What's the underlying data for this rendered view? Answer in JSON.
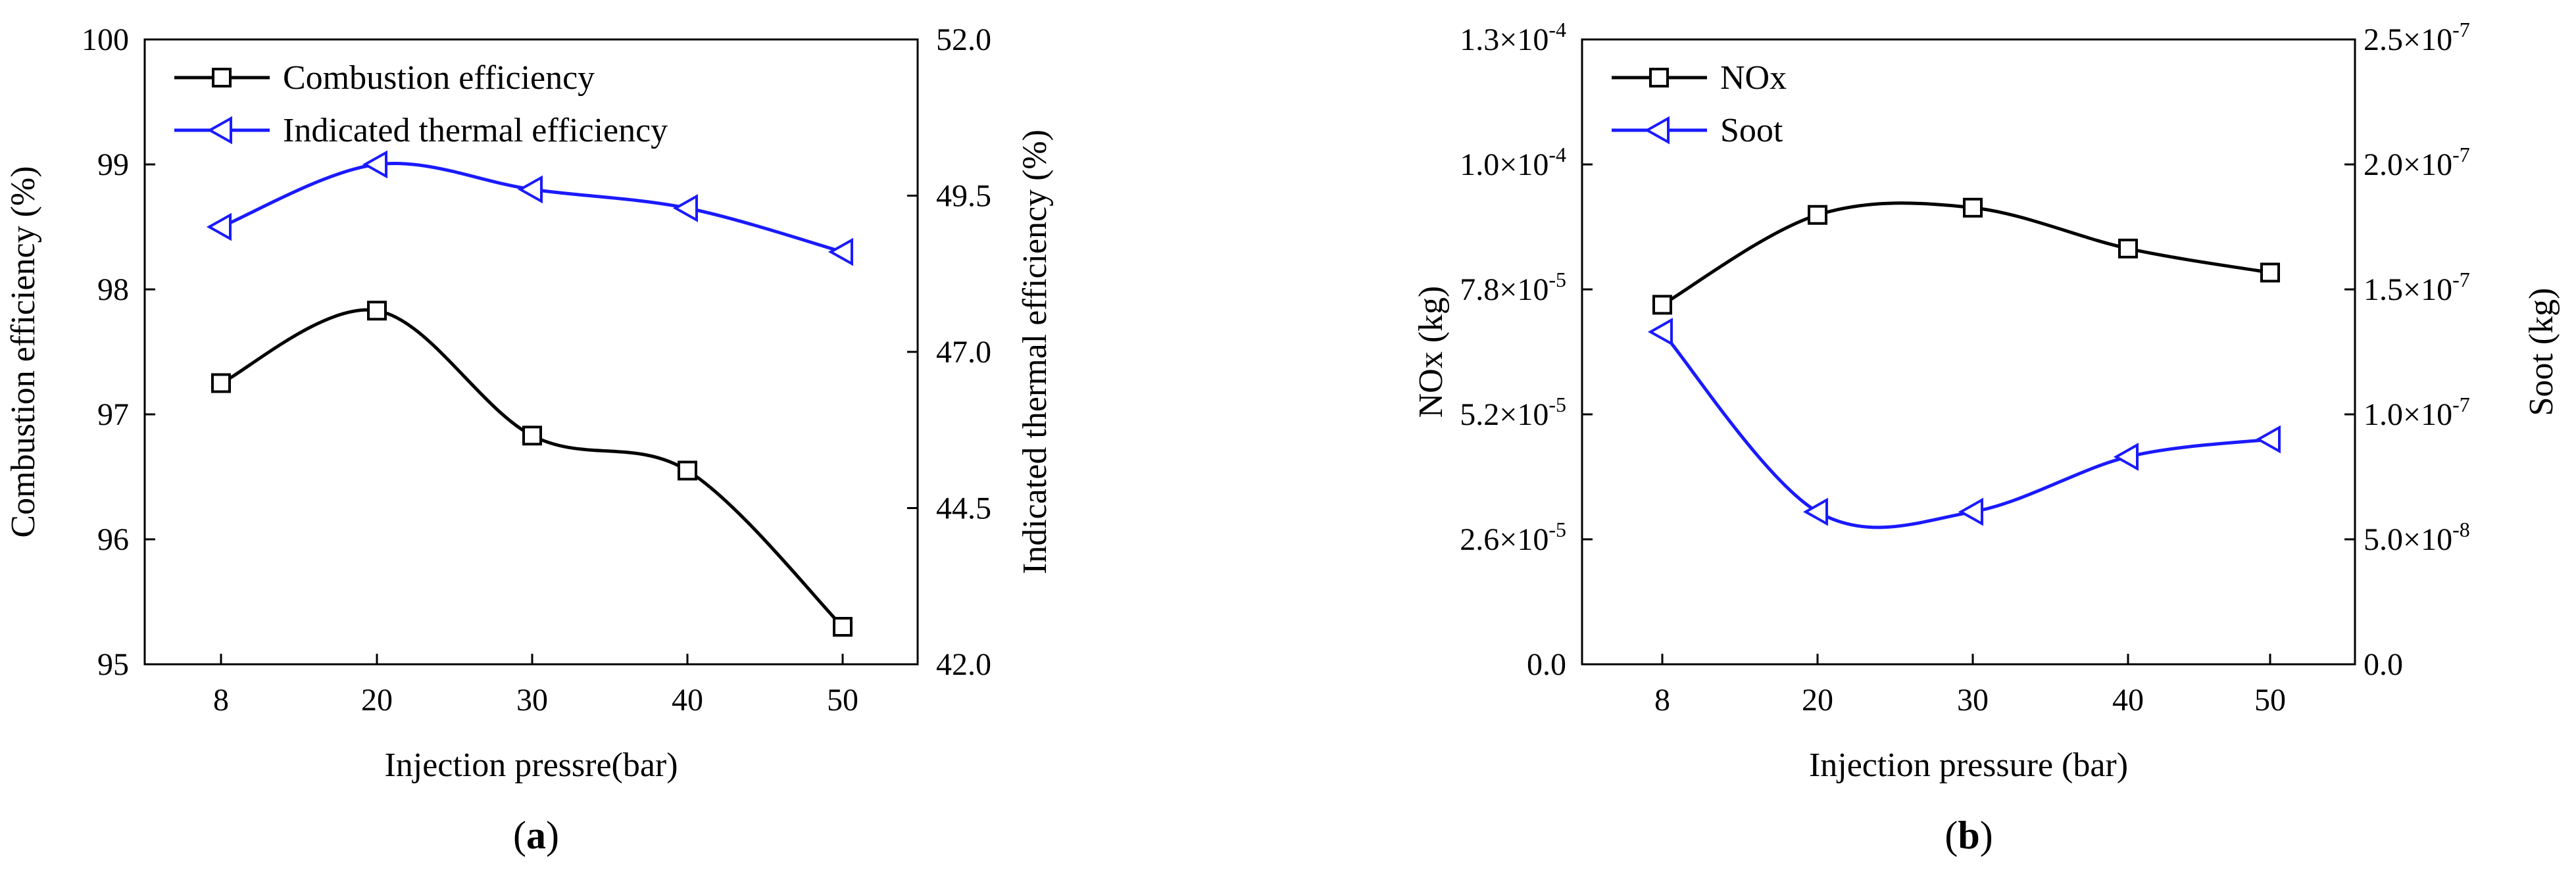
{
  "chart_data": [
    {
      "type": "line",
      "panel_label": "a",
      "xlabel": "Injection pressre(bar)",
      "categories": [
        "8",
        "20",
        "30",
        "40",
        "50"
      ],
      "ylabel_left": "Combustion efficiency (%)",
      "ylim_left": [
        95,
        100
      ],
      "yticks_left": [
        "95",
        "96",
        "97",
        "98",
        "99",
        "100"
      ],
      "ylabel_right": "Indicated thermal efficiency (%)",
      "ylim_right": [
        42.0,
        52.0
      ],
      "yticks_right": [
        "42.0",
        "44.5",
        "47.0",
        "49.5",
        "52.0"
      ],
      "legend_position": "top-left",
      "grid": false,
      "series": [
        {
          "name": "Combustion efficiency",
          "axis": "left",
          "marker": "square",
          "color": "#000000",
          "values": [
            97.25,
            97.83,
            96.83,
            96.55,
            95.3
          ]
        },
        {
          "name": "Indicated thermal efficiency",
          "axis": "right",
          "marker": "triangle-left",
          "color": "#1a1aff",
          "values": [
            49.0,
            50.0,
            49.6,
            49.3,
            48.6
          ]
        }
      ]
    },
    {
      "type": "line",
      "panel_label": "b",
      "xlabel": "Injection pressure (bar)",
      "categories": [
        "8",
        "20",
        "30",
        "40",
        "50"
      ],
      "ylabel_left": "NOx (kg)",
      "ylim_left": [
        0,
        0.00013
      ],
      "yticks_left": [
        {
          "m": "0.0",
          "e": ""
        },
        {
          "m": "2.6×10",
          "e": "-5"
        },
        {
          "m": "5.2×10",
          "e": "-5"
        },
        {
          "m": "7.8×10",
          "e": "-5"
        },
        {
          "m": "1.0×10",
          "e": "-4"
        },
        {
          "m": "1.3×10",
          "e": "-4"
        }
      ],
      "ylabel_right": "Soot (kg)",
      "ylim_right": [
        0,
        2.5e-07
      ],
      "yticks_right": [
        {
          "m": "0.0",
          "e": ""
        },
        {
          "m": "5.0×10",
          "e": "-8"
        },
        {
          "m": "1.0×10",
          "e": "-7"
        },
        {
          "m": "1.5×10",
          "e": "-7"
        },
        {
          "m": "2.0×10",
          "e": "-7"
        },
        {
          "m": "2.5×10",
          "e": "-7"
        }
      ],
      "legend_position": "top-left",
      "grid": false,
      "series": [
        {
          "name": "NOx",
          "axis": "left",
          "marker": "square",
          "color": "#000000",
          "values": [
            7.48e-05,
            9.35e-05,
            9.5e-05,
            8.65e-05,
            8.15e-05
          ]
        },
        {
          "name": "Soot",
          "axis": "right",
          "marker": "triangle-left",
          "color": "#1a1aff",
          "values": [
            1.33e-07,
            6.1e-08,
            6.1e-08,
            8.3e-08,
            9e-08
          ]
        }
      ]
    }
  ]
}
